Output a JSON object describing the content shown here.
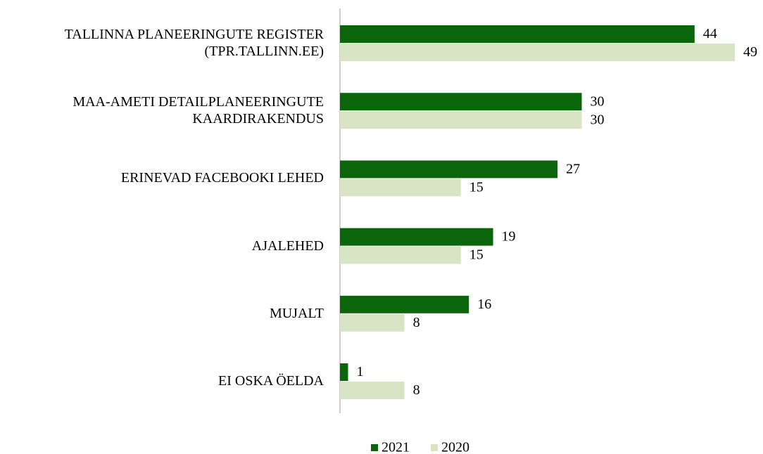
{
  "chart_data": {
    "type": "hbar",
    "categories": [
      "TALLINNA PLANEERINGUTE REGISTER\n(TPR.TALLINN.EE)",
      "MAA-AMETI DETAILPLANEERINGUTE\nKAARDIRAKENDUS",
      "ERINEVAD FACEBOOKI LEHED",
      "AJALEHED",
      "MUJALT",
      "EI OSKA ÖELDA"
    ],
    "series": [
      {
        "name": "2021",
        "color": "#0b650b",
        "values": [
          44,
          30,
          27,
          19,
          16,
          1
        ]
      },
      {
        "name": "2020",
        "color": "#d8e5c4",
        "values": [
          49,
          30,
          15,
          15,
          8,
          8
        ]
      }
    ],
    "legend": "bottom"
  }
}
